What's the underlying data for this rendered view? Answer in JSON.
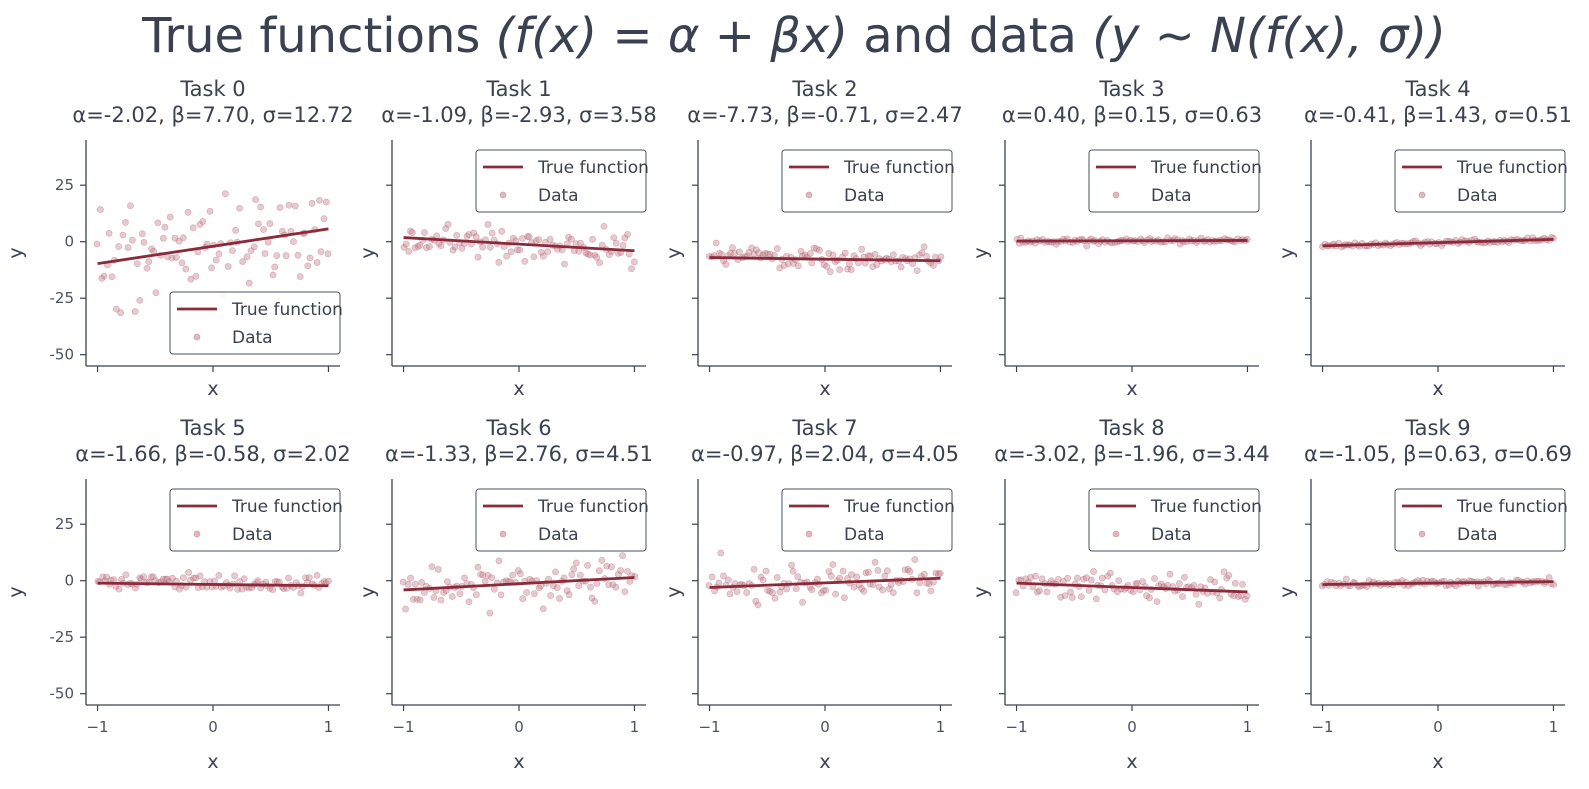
{
  "chart_data": {
    "type": "scatter",
    "title_parts": [
      "True functions ",
      "(f(x) = α + βx)",
      " and data ",
      "(y ∼ N(f(x), σ))"
    ],
    "xlabel": "x",
    "ylabel": "y",
    "xlim": [
      -1.1,
      1.1
    ],
    "ylim": [
      -55,
      45
    ],
    "xticks": [
      -1,
      0,
      1
    ],
    "yticks": [
      25,
      0,
      -25,
      -50
    ],
    "legend": {
      "line_label": "True function",
      "points_label": "Data"
    },
    "colors": {
      "line": "#8b2a3a",
      "points": "#c98994",
      "text": "#3a4150",
      "axis": "#3a4150"
    },
    "tasks": [
      {
        "name": "Task 0",
        "params": "α=-2.02, β=7.70, σ=12.72",
        "alpha": -2.02,
        "beta": 7.7,
        "sigma": 12.72,
        "legend_position": "lower-right"
      },
      {
        "name": "Task 1",
        "params": "α=-1.09, β=-2.93, σ=3.58",
        "alpha": -1.09,
        "beta": -2.93,
        "sigma": 3.58,
        "legend_position": "upper-right"
      },
      {
        "name": "Task 2",
        "params": "α=-7.73, β=-0.71, σ=2.47",
        "alpha": -7.73,
        "beta": -0.71,
        "sigma": 2.47,
        "legend_position": "upper-right"
      },
      {
        "name": "Task 3",
        "params": "α=0.40, β=0.15, σ=0.63",
        "alpha": 0.4,
        "beta": 0.15,
        "sigma": 0.63,
        "legend_position": "upper-right"
      },
      {
        "name": "Task 4",
        "params": "α=-0.41, β=1.43, σ=0.51",
        "alpha": -0.41,
        "beta": 1.43,
        "sigma": 0.51,
        "legend_position": "upper-right"
      },
      {
        "name": "Task 5",
        "params": "α=-1.66, β=-0.58, σ=2.02",
        "alpha": -1.66,
        "beta": -0.58,
        "sigma": 2.02,
        "legend_position": "upper-right"
      },
      {
        "name": "Task 6",
        "params": "α=-1.33, β=2.76, σ=4.51",
        "alpha": -1.33,
        "beta": 2.76,
        "sigma": 4.51,
        "legend_position": "upper-right"
      },
      {
        "name": "Task 7",
        "params": "α=-0.97, β=2.04, σ=4.05",
        "alpha": -0.97,
        "beta": 2.04,
        "sigma": 4.05,
        "legend_position": "upper-right"
      },
      {
        "name": "Task 8",
        "params": "α=-3.02, β=-1.96, σ=3.44",
        "alpha": -3.02,
        "beta": -1.96,
        "sigma": 3.44,
        "legend_position": "upper-right"
      },
      {
        "name": "Task 9",
        "params": "α=-1.05, β=0.63, σ=0.69",
        "alpha": -1.05,
        "beta": 0.63,
        "sigma": 0.69,
        "legend_position": "upper-right"
      }
    ]
  }
}
